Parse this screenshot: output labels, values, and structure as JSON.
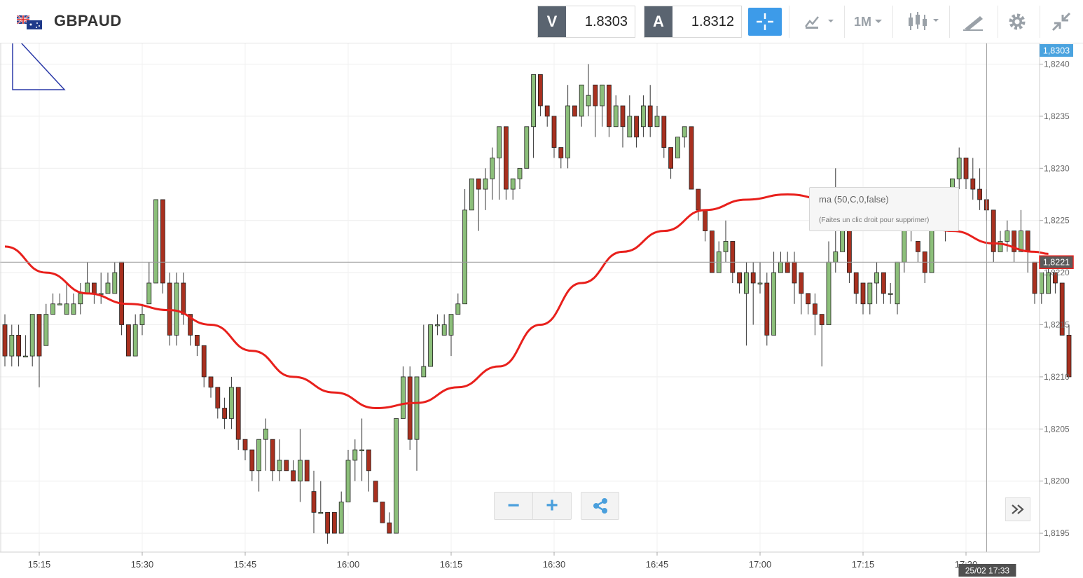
{
  "header": {
    "symbol": "GBPAUD",
    "bid_label": "V",
    "bid_value": "1.8303",
    "ask_label": "A",
    "ask_value": "1.8312",
    "timeframe": "1M",
    "icons": [
      "gbp-aud-flag-icon",
      "crosshair-icon",
      "chart-type-icon",
      "candlestick-icon",
      "drawing-tools-icon",
      "gear-icon",
      "collapse-icon"
    ]
  },
  "indicator_tooltip": {
    "title": "ma (50,C,0,false)",
    "hint": "(Faites un clic droit pour supprimer)"
  },
  "controls": {
    "zoom_out_label": "−",
    "zoom_in_label": "+",
    "icons": [
      "zoom-out-icon",
      "zoom-in-icon",
      "share-icon",
      "fast-forward-icon"
    ]
  },
  "colors": {
    "up": "#8cbf7a",
    "down": "#a8301f",
    "ma": "#e8201c",
    "last_price_tag": "#4aa3df",
    "current_price_tag": "#5b5b5b",
    "accent": "#3d9be9"
  },
  "chart_data": {
    "type": "candlestick",
    "symbol": "GBPAUD",
    "interval": "1M",
    "x_ticks": [
      "15:15",
      "15:30",
      "15:45",
      "16:00",
      "16:15",
      "16:30",
      "16:45",
      "17:00",
      "17:15",
      "17:30"
    ],
    "y_ticks": [
      "1,8240",
      "1,8235",
      "1,8230",
      "1,8225",
      "1,8220",
      "1,8215",
      "1,8210",
      "1,8205",
      "1,8200",
      "1,8195"
    ],
    "ylim": [
      1.8193,
      1.8242
    ],
    "grid": true,
    "last_price_label": "1,8303",
    "current_price_label": "1,8221",
    "current_price": 1.8221,
    "crosshair_time_label": "25/02 17:33",
    "crosshair_time": "17:33",
    "time_start": "15:10",
    "candles": [
      [
        1.8215,
        1.8212,
        1.8216,
        1.8211
      ],
      [
        1.8212,
        1.8214,
        1.8215,
        1.8211
      ],
      [
        1.8214,
        1.8212,
        1.8215,
        1.8211
      ],
      [
        1.8212,
        1.8212,
        1.8214,
        1.8212
      ],
      [
        1.8212,
        1.8216,
        1.8216,
        1.8211
      ],
      [
        1.8216,
        1.8212,
        1.8216,
        1.8209
      ],
      [
        1.8213,
        1.8216,
        1.8217,
        1.8213
      ],
      [
        1.8216,
        1.8217,
        1.8218,
        1.8216
      ],
      [
        1.8217,
        1.8217,
        1.8218,
        1.8217
      ],
      [
        1.8216,
        1.8217,
        1.8219,
        1.8216
      ],
      [
        1.8216,
        1.8217,
        1.8218,
        1.8216
      ],
      [
        1.8217,
        1.8218,
        1.8219,
        1.8216
      ],
      [
        1.8218,
        1.8219,
        1.8221,
        1.8218
      ],
      [
        1.8219,
        1.8218,
        1.8219,
        1.8217
      ],
      [
        1.8218,
        1.8218,
        1.822,
        1.8217
      ],
      [
        1.8218,
        1.8219,
        1.822,
        1.8218
      ],
      [
        1.8218,
        1.822,
        1.8221,
        1.8218
      ],
      [
        1.8221,
        1.8215,
        1.8221,
        1.8214
      ],
      [
        1.8215,
        1.8212,
        1.8215,
        1.8212
      ],
      [
        1.8212,
        1.8215,
        1.8216,
        1.8212
      ],
      [
        1.8215,
        1.8216,
        1.8217,
        1.8214
      ],
      [
        1.8217,
        1.8219,
        1.8221,
        1.8217
      ],
      [
        1.8219,
        1.8227,
        1.8227,
        1.8219
      ],
      [
        1.8227,
        1.8219,
        1.8227,
        1.8218
      ],
      [
        1.8219,
        1.8214,
        1.822,
        1.8213
      ],
      [
        1.8214,
        1.8219,
        1.822,
        1.8213
      ],
      [
        1.8219,
        1.8216,
        1.822,
        1.8215
      ],
      [
        1.8216,
        1.8214,
        1.8216,
        1.8213
      ],
      [
        1.8214,
        1.8213,
        1.8214,
        1.8212
      ],
      [
        1.8213,
        1.821,
        1.8213,
        1.8209
      ],
      [
        1.821,
        1.8209,
        1.821,
        1.8208
      ],
      [
        1.8209,
        1.8207,
        1.8209,
        1.8206
      ],
      [
        1.8207,
        1.8206,
        1.8208,
        1.8205
      ],
      [
        1.8206,
        1.8209,
        1.821,
        1.8205
      ],
      [
        1.8209,
        1.8204,
        1.8209,
        1.8203
      ],
      [
        1.8204,
        1.8203,
        1.8204,
        1.8202
      ],
      [
        1.8203,
        1.8201,
        1.8203,
        1.82
      ],
      [
        1.8201,
        1.8204,
        1.8204,
        1.8199
      ],
      [
        1.8204,
        1.8205,
        1.8206,
        1.8201
      ],
      [
        1.8204,
        1.8201,
        1.8204,
        1.82
      ],
      [
        1.8201,
        1.8202,
        1.8204,
        1.82
      ],
      [
        1.8202,
        1.8201,
        1.8202,
        1.8201
      ],
      [
        1.8201,
        1.82,
        1.8202,
        1.82
      ],
      [
        1.82,
        1.8202,
        1.8205,
        1.8198
      ],
      [
        1.8202,
        1.82,
        1.8202,
        1.82
      ],
      [
        1.8199,
        1.8197,
        1.8201,
        1.8195
      ],
      [
        1.8197,
        1.8197,
        1.82,
        1.8197
      ],
      [
        1.8197,
        1.8195,
        1.8197,
        1.8194
      ],
      [
        1.8197,
        1.8195,
        1.8197,
        1.8195
      ],
      [
        1.8195,
        1.8198,
        1.8199,
        1.8195
      ],
      [
        1.8198,
        1.8202,
        1.8203,
        1.8198
      ],
      [
        1.8202,
        1.8203,
        1.8204,
        1.82
      ],
      [
        1.8203,
        1.8203,
        1.8206,
        1.82
      ],
      [
        1.8203,
        1.8201,
        1.8203,
        1.8199
      ],
      [
        1.82,
        1.8198,
        1.82,
        1.8198
      ],
      [
        1.8198,
        1.8196,
        1.8197,
        1.8196
      ],
      [
        1.8196,
        1.8195,
        1.8197,
        1.8195
      ],
      [
        1.8195,
        1.8206,
        1.8206,
        1.8195
      ],
      [
        1.8206,
        1.821,
        1.8211,
        1.8206
      ],
      [
        1.821,
        1.8204,
        1.8211,
        1.8203
      ],
      [
        1.8204,
        1.821,
        1.821,
        1.8201
      ],
      [
        1.821,
        1.8211,
        1.8215,
        1.8211
      ],
      [
        1.8211,
        1.8215,
        1.8215,
        1.8212
      ],
      [
        1.8215,
        1.8215,
        1.8216,
        1.8214
      ],
      [
        1.8214,
        1.8215,
        1.8216,
        1.8214
      ],
      [
        1.8214,
        1.8216,
        1.8215,
        1.8212
      ],
      [
        1.8216,
        1.8217,
        1.8218,
        1.8216
      ],
      [
        1.8217,
        1.8226,
        1.8228,
        1.8217
      ],
      [
        1.8226,
        1.8229,
        1.8228,
        1.8226
      ],
      [
        1.8229,
        1.8228,
        1.8229,
        1.8224
      ],
      [
        1.8228,
        1.8229,
        1.823,
        1.8226
      ],
      [
        1.8229,
        1.8231,
        1.8232,
        1.8227
      ],
      [
        1.8231,
        1.8234,
        1.8234,
        1.8227
      ],
      [
        1.8234,
        1.8228,
        1.8234,
        1.8227
      ],
      [
        1.8228,
        1.8229,
        1.8229,
        1.8227
      ],
      [
        1.8229,
        1.823,
        1.823,
        1.8228
      ],
      [
        1.823,
        1.8234,
        1.8234,
        1.823
      ],
      [
        1.8234,
        1.8239,
        1.8239,
        1.8231
      ],
      [
        1.8239,
        1.8236,
        1.8239,
        1.8235
      ],
      [
        1.8236,
        1.8235,
        1.8236,
        1.8234
      ],
      [
        1.8235,
        1.8232,
        1.8235,
        1.8231
      ],
      [
        1.8232,
        1.8231,
        1.8232,
        1.823
      ],
      [
        1.8231,
        1.8236,
        1.8238,
        1.823
      ],
      [
        1.8236,
        1.8235,
        1.8236,
        1.8235
      ],
      [
        1.8235,
        1.8238,
        1.8238,
        1.8234
      ],
      [
        1.8236,
        1.8237,
        1.824,
        1.8235
      ],
      [
        1.8238,
        1.8236,
        1.8238,
        1.8233
      ],
      [
        1.8236,
        1.8238,
        1.8238,
        1.8234
      ],
      [
        1.8238,
        1.8234,
        1.8238,
        1.8233
      ],
      [
        1.8234,
        1.8236,
        1.8237,
        1.8234
      ],
      [
        1.8236,
        1.8234,
        1.8236,
        1.8232
      ],
      [
        1.8233,
        1.8235,
        1.8237,
        1.8234
      ],
      [
        1.8235,
        1.8233,
        1.8234,
        1.8232
      ],
      [
        1.8234,
        1.8236,
        1.8237,
        1.8233
      ],
      [
        1.8236,
        1.8234,
        1.8238,
        1.8233
      ],
      [
        1.8234,
        1.8235,
        1.8236,
        1.8234
      ],
      [
        1.8235,
        1.8232,
        1.8235,
        1.8231
      ],
      [
        1.8232,
        1.823,
        1.8232,
        1.8229
      ],
      [
        1.8231,
        1.8233,
        1.8233,
        1.8231
      ],
      [
        1.8233,
        1.8234,
        1.8234,
        1.8232
      ],
      [
        1.8234,
        1.8228,
        1.8234,
        1.8228
      ],
      [
        1.8228,
        1.8226,
        1.8228,
        1.8225
      ],
      [
        1.8226,
        1.8224,
        1.8226,
        1.8223
      ],
      [
        1.8224,
        1.822,
        1.8224,
        1.822
      ],
      [
        1.822,
        1.8222,
        1.8223,
        1.822
      ],
      [
        1.8222,
        1.8223,
        1.8225,
        1.8221
      ],
      [
        1.8223,
        1.822,
        1.8223,
        1.8219
      ],
      [
        1.822,
        1.8219,
        1.822,
        1.8218
      ],
      [
        1.8218,
        1.822,
        1.8221,
        1.8213
      ],
      [
        1.822,
        1.8219,
        1.8221,
        1.8215
      ],
      [
        1.8219,
        1.8219,
        1.8221,
        1.8218
      ],
      [
        1.8219,
        1.8214,
        1.822,
        1.8213
      ],
      [
        1.8214,
        1.822,
        1.8222,
        1.8214
      ],
      [
        1.822,
        1.8221,
        1.8222,
        1.822
      ],
      [
        1.8221,
        1.822,
        1.8222,
        1.822
      ],
      [
        1.8221,
        1.8219,
        1.8222,
        1.8217
      ],
      [
        1.822,
        1.8218,
        1.822,
        1.8216
      ],
      [
        1.8218,
        1.8217,
        1.8218,
        1.8216
      ],
      [
        1.8217,
        1.8216,
        1.8218,
        1.8214
      ],
      [
        1.8216,
        1.8215,
        1.8216,
        1.8211
      ],
      [
        1.8215,
        1.8221,
        1.8223,
        1.8215
      ],
      [
        1.8221,
        1.8222,
        1.823,
        1.822
      ],
      [
        1.8222,
        1.8224,
        1.8225,
        1.8222
      ],
      [
        1.8224,
        1.822,
        1.8223,
        1.8219
      ],
      [
        1.822,
        1.8218,
        1.822,
        1.8217
      ],
      [
        1.8219,
        1.8217,
        1.8219,
        1.8216
      ],
      [
        1.8217,
        1.8219,
        1.8219,
        1.8216
      ],
      [
        1.8219,
        1.822,
        1.8221,
        1.8217
      ],
      [
        1.822,
        1.8218,
        1.822,
        1.8217
      ],
      [
        1.8218,
        1.8218,
        1.8219,
        1.8217
      ],
      [
        1.8217,
        1.8221,
        1.8221,
        1.8216
      ],
      [
        1.8221,
        1.8226,
        1.8226,
        1.822
      ],
      [
        1.8226,
        1.8224,
        1.8227,
        1.8223
      ],
      [
        1.8223,
        1.8222,
        1.8223,
        1.8221
      ],
      [
        1.8222,
        1.822,
        1.8222,
        1.8219
      ],
      [
        1.822,
        1.8224,
        1.8224,
        1.822
      ],
      [
        1.8224,
        1.8226,
        1.8227,
        1.8224
      ],
      [
        1.8226,
        1.8225,
        1.8226,
        1.8223
      ],
      [
        1.8228,
        1.8229,
        1.8229,
        1.8227
      ],
      [
        1.8229,
        1.8231,
        1.8232,
        1.8228
      ],
      [
        1.8231,
        1.8229,
        1.8231,
        1.8228
      ],
      [
        1.8229,
        1.8228,
        1.8231,
        1.8227
      ],
      [
        1.8228,
        1.8227,
        1.823,
        1.8226
      ],
      [
        1.8227,
        1.8226,
        1.8228,
        1.8225
      ],
      [
        1.8226,
        1.8222,
        1.8226,
        1.8221
      ],
      [
        1.8222,
        1.8223,
        1.8224,
        1.8222
      ],
      [
        1.8223,
        1.8224,
        1.8225,
        1.8222
      ],
      [
        1.8224,
        1.8222,
        1.8224,
        1.8221
      ],
      [
        1.8222,
        1.8224,
        1.8226,
        1.8222
      ],
      [
        1.8224,
        1.8222,
        1.8224,
        1.822
      ],
      [
        1.8221,
        1.8218,
        1.8221,
        1.8217
      ],
      [
        1.8218,
        1.822,
        1.822,
        1.8217
      ],
      [
        1.8218,
        1.822,
        1.8221,
        1.8218
      ],
      [
        1.822,
        1.8219,
        1.822,
        1.8218
      ],
      [
        1.8219,
        1.8214,
        1.8219,
        1.8214
      ],
      [
        1.8214,
        1.821,
        1.8215,
        1.821
      ]
    ],
    "moving_average": {
      "name": "ma (50,C,0,false)",
      "period": 50,
      "points": [
        [
          0,
          1.82225
        ],
        [
          6,
          1.822
        ],
        [
          12,
          1.8218
        ],
        [
          18,
          1.8217
        ],
        [
          24,
          1.82164
        ],
        [
          30,
          1.8215
        ],
        [
          36,
          1.82125
        ],
        [
          42,
          1.821
        ],
        [
          48,
          1.82085
        ],
        [
          54,
          1.8207
        ],
        [
          60,
          1.82075
        ],
        [
          66,
          1.8209
        ],
        [
          72,
          1.8211
        ],
        [
          78,
          1.8215
        ],
        [
          84,
          1.8219
        ],
        [
          90,
          1.8222
        ],
        [
          96,
          1.8224
        ],
        [
          102,
          1.8226
        ],
        [
          108,
          1.8227
        ],
        [
          114,
          1.82275
        ],
        [
          120,
          1.8227
        ],
        [
          126,
          1.8226
        ],
        [
          132,
          1.8225
        ],
        [
          138,
          1.8224
        ],
        [
          144,
          1.82228
        ],
        [
          150,
          1.8222
        ],
        [
          152,
          1.82218
        ]
      ]
    }
  }
}
